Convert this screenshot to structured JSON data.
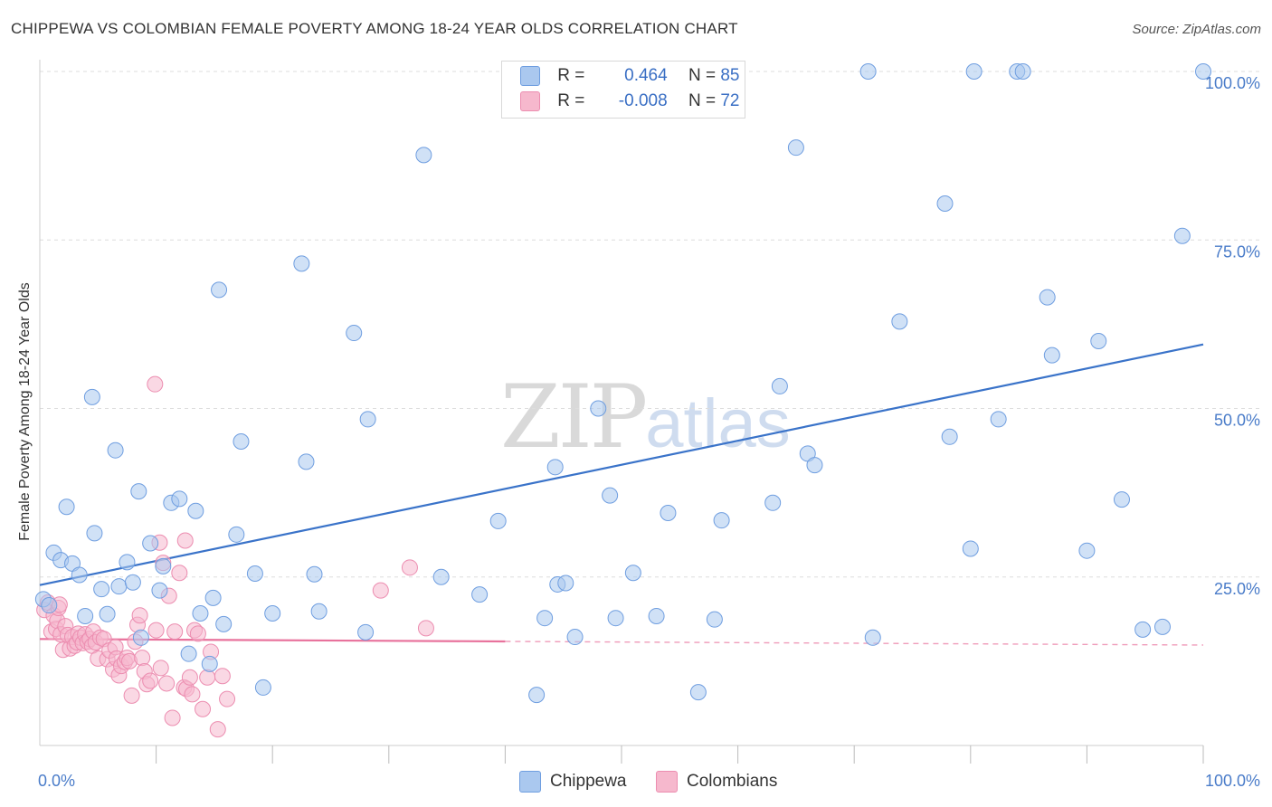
{
  "title": "CHIPPEWA VS COLOMBIAN FEMALE POVERTY AMONG 18-24 YEAR OLDS CORRELATION CHART",
  "source": "Source: ZipAtlas.com",
  "watermark": {
    "zip": "ZIP",
    "atlas": "atlas"
  },
  "colors": {
    "chippewa_fill": "#aac8ef",
    "chippewa_stroke": "#6f9ee0",
    "chippewa_line": "#3a73c9",
    "colombians_fill": "#f6b8cd",
    "colombians_stroke": "#ec8db0",
    "colombians_line": "#e8729c",
    "grid": "#dddddd",
    "tick_text": "#4a7cc9"
  },
  "legend": {
    "rows": [
      {
        "r_label": "R =",
        "r_value": "0.464",
        "n_label": "N =",
        "n_value": "85",
        "series": "chippewa"
      },
      {
        "r_label": "R =",
        "r_value": "-0.008",
        "n_label": "N =",
        "n_value": "72",
        "series": "colombians"
      }
    ]
  },
  "bottom_legend": [
    {
      "label": "Chippewa",
      "series": "chippewa"
    },
    {
      "label": "Colombians",
      "series": "colombians"
    }
  ],
  "chart_data": {
    "type": "scatter",
    "title": "CHIPPEWA VS COLOMBIAN FEMALE POVERTY AMONG 18-24 YEAR OLDS CORRELATION CHART",
    "xlabel": "",
    "ylabel": "Female Poverty Among 18-24 Year Olds",
    "xlim": [
      0,
      100
    ],
    "ylim": [
      0,
      100
    ],
    "x_tick_labels": [
      {
        "value": 0,
        "label": "0.0%"
      },
      {
        "value": 100,
        "label": "100.0%"
      }
    ],
    "y_tick_labels": [
      {
        "value": 25,
        "label": "25.0%"
      },
      {
        "value": 50,
        "label": "50.0%"
      },
      {
        "value": 75,
        "label": "75.0%"
      },
      {
        "value": 100,
        "label": "100.0%"
      }
    ],
    "x_minor_ticks": [
      10,
      20,
      30,
      40,
      50,
      60,
      70,
      80,
      90,
      100
    ],
    "grid": true,
    "series": [
      {
        "name": "Chippewa",
        "key": "chippewa",
        "r": 0.464,
        "n": 85,
        "trend": {
          "x0": 0,
          "y0": 23.8,
          "x1": 100,
          "y1": 59.5,
          "dashed_from": null
        },
        "points": [
          [
            0.3,
            21.7
          ],
          [
            0.8,
            20.8
          ],
          [
            1.2,
            28.6
          ],
          [
            1.8,
            27.5
          ],
          [
            2.3,
            35.4
          ],
          [
            2.8,
            27.0
          ],
          [
            3.4,
            25.3
          ],
          [
            3.9,
            19.2
          ],
          [
            4.5,
            51.7
          ],
          [
            4.7,
            31.5
          ],
          [
            5.3,
            23.2
          ],
          [
            5.8,
            19.5
          ],
          [
            6.5,
            43.8
          ],
          [
            6.8,
            23.6
          ],
          [
            7.5,
            27.2
          ],
          [
            8.0,
            24.2
          ],
          [
            8.5,
            37.7
          ],
          [
            8.7,
            16.0
          ],
          [
            9.5,
            30.0
          ],
          [
            10.3,
            23.0
          ],
          [
            10.6,
            26.6
          ],
          [
            11.3,
            36.0
          ],
          [
            12.0,
            36.6
          ],
          [
            12.8,
            13.6
          ],
          [
            13.4,
            34.8
          ],
          [
            13.8,
            19.6
          ],
          [
            14.6,
            12.1
          ],
          [
            14.9,
            21.9
          ],
          [
            15.4,
            67.6
          ],
          [
            15.8,
            18.0
          ],
          [
            16.9,
            31.3
          ],
          [
            17.3,
            45.1
          ],
          [
            18.5,
            25.5
          ],
          [
            19.2,
            8.6
          ],
          [
            20.0,
            19.6
          ],
          [
            22.5,
            71.5
          ],
          [
            22.9,
            42.1
          ],
          [
            23.6,
            25.4
          ],
          [
            24.0,
            19.9
          ],
          [
            27.0,
            61.2
          ],
          [
            28.0,
            16.8
          ],
          [
            28.2,
            48.4
          ],
          [
            33.0,
            87.6
          ],
          [
            34.5,
            25.0
          ],
          [
            37.8,
            22.4
          ],
          [
            39.4,
            33.3
          ],
          [
            42.7,
            7.5
          ],
          [
            43.4,
            18.9
          ],
          [
            44.3,
            41.3
          ],
          [
            44.5,
            23.9
          ],
          [
            45.2,
            24.1
          ],
          [
            46.0,
            16.1
          ],
          [
            48.0,
            50.0
          ],
          [
            49.0,
            37.1
          ],
          [
            49.5,
            18.9
          ],
          [
            51.0,
            25.6
          ],
          [
            53.0,
            19.2
          ],
          [
            54.0,
            34.5
          ],
          [
            56.6,
            7.9
          ],
          [
            58.0,
            18.7
          ],
          [
            58.6,
            33.4
          ],
          [
            63.0,
            36.0
          ],
          [
            63.6,
            53.3
          ],
          [
            65.0,
            88.7
          ],
          [
            66.0,
            43.3
          ],
          [
            66.6,
            41.6
          ],
          [
            71.2,
            100.0
          ],
          [
            71.6,
            16.0
          ],
          [
            73.9,
            62.9
          ],
          [
            77.8,
            80.4
          ],
          [
            78.2,
            45.8
          ],
          [
            80.0,
            29.2
          ],
          [
            80.3,
            100.0
          ],
          [
            82.4,
            48.4
          ],
          [
            84.0,
            100.0
          ],
          [
            84.5,
            100.0
          ],
          [
            86.6,
            66.5
          ],
          [
            87.0,
            57.9
          ],
          [
            90.0,
            28.9
          ],
          [
            91.0,
            60.0
          ],
          [
            93.0,
            36.5
          ],
          [
            94.8,
            17.2
          ],
          [
            96.5,
            17.6
          ],
          [
            98.2,
            75.6
          ],
          [
            100.0,
            100.0
          ]
        ]
      },
      {
        "name": "Colombians",
        "key": "colombians",
        "r": -0.008,
        "n": 72,
        "trend": {
          "x0": 0,
          "y0": 15.8,
          "x1": 100,
          "y1": 14.9,
          "dashed_from": 40
        },
        "points": [
          [
            0.4,
            20.1
          ],
          [
            0.7,
            21.2
          ],
          [
            1.0,
            16.9
          ],
          [
            1.2,
            19.3
          ],
          [
            1.4,
            17.3
          ],
          [
            1.5,
            18.5
          ],
          [
            1.6,
            20.4
          ],
          [
            1.7,
            20.9
          ],
          [
            1.8,
            16.5
          ],
          [
            2.0,
            14.2
          ],
          [
            2.2,
            17.7
          ],
          [
            2.4,
            16.4
          ],
          [
            2.6,
            14.4
          ],
          [
            2.8,
            16.1
          ],
          [
            3.0,
            14.8
          ],
          [
            3.2,
            15.3
          ],
          [
            3.3,
            16.6
          ],
          [
            3.5,
            16.0
          ],
          [
            3.7,
            15.2
          ],
          [
            3.9,
            16.5
          ],
          [
            4.1,
            15.4
          ],
          [
            4.3,
            15.8
          ],
          [
            4.5,
            14.8
          ],
          [
            4.6,
            16.9
          ],
          [
            4.8,
            15.3
          ],
          [
            5.0,
            12.9
          ],
          [
            5.2,
            16.0
          ],
          [
            5.5,
            15.8
          ],
          [
            5.8,
            12.8
          ],
          [
            6.0,
            14.1
          ],
          [
            6.3,
            11.3
          ],
          [
            6.5,
            14.6
          ],
          [
            6.6,
            12.9
          ],
          [
            6.8,
            10.4
          ],
          [
            7.0,
            11.8
          ],
          [
            7.3,
            12.4
          ],
          [
            7.5,
            13.0
          ],
          [
            7.7,
            12.5
          ],
          [
            7.9,
            7.4
          ],
          [
            8.2,
            15.4
          ],
          [
            8.4,
            17.9
          ],
          [
            8.6,
            19.3
          ],
          [
            8.8,
            13.0
          ],
          [
            9.0,
            11.0
          ],
          [
            9.2,
            9.1
          ],
          [
            9.5,
            9.6
          ],
          [
            9.9,
            53.6
          ],
          [
            10.0,
            17.1
          ],
          [
            10.3,
            30.1
          ],
          [
            10.4,
            11.5
          ],
          [
            10.6,
            27.1
          ],
          [
            10.9,
            9.2
          ],
          [
            11.1,
            22.2
          ],
          [
            11.4,
            4.1
          ],
          [
            11.6,
            16.9
          ],
          [
            12.0,
            25.6
          ],
          [
            12.4,
            8.6
          ],
          [
            12.5,
            30.4
          ],
          [
            12.6,
            8.4
          ],
          [
            12.9,
            10.1
          ],
          [
            13.1,
            7.6
          ],
          [
            13.3,
            17.1
          ],
          [
            13.6,
            16.6
          ],
          [
            14.0,
            5.4
          ],
          [
            14.4,
            10.1
          ],
          [
            14.7,
            13.9
          ],
          [
            15.3,
            2.4
          ],
          [
            15.7,
            10.3
          ],
          [
            16.1,
            6.9
          ],
          [
            29.3,
            23.0
          ],
          [
            31.8,
            26.4
          ],
          [
            33.2,
            17.4
          ]
        ]
      }
    ]
  }
}
